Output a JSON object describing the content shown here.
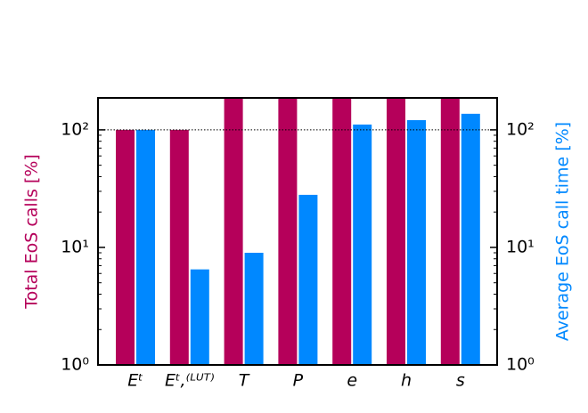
{
  "chart_data": {
    "type": "bar",
    "log_scale": true,
    "categories": [
      "Eᵗ",
      "Eᵗ,⁽ᴸᵁᵀ⁾",
      "T",
      "P",
      "e",
      "h",
      "s"
    ],
    "series": [
      {
        "name": "Total EoS calls [%]",
        "color": "#b5005a",
        "values": [
          100,
          100,
          187,
          187,
          187,
          187,
          187
        ]
      },
      {
        "name": "Average EoS call time [%]",
        "color": "#0088ff",
        "axis": "y2",
        "values": [
          100,
          6.5,
          9,
          28,
          111,
          121,
          137
        ]
      }
    ],
    "ylabel": "Total EoS calls [%]",
    "y2label": "Average EoS call time [%]",
    "ylim": [
      1,
      187
    ],
    "yticks": [
      {
        "value": 1,
        "label": "10⁰"
      },
      {
        "value": 10,
        "label": "10¹"
      },
      {
        "value": 100,
        "label": "10²"
      }
    ],
    "y2lim": [
      1,
      187
    ],
    "y2ticks": [
      {
        "value": 1,
        "label": "10⁰"
      },
      {
        "value": 10,
        "label": "10¹"
      },
      {
        "value": 100,
        "label": "10²"
      }
    ],
    "reference_line": 100
  }
}
